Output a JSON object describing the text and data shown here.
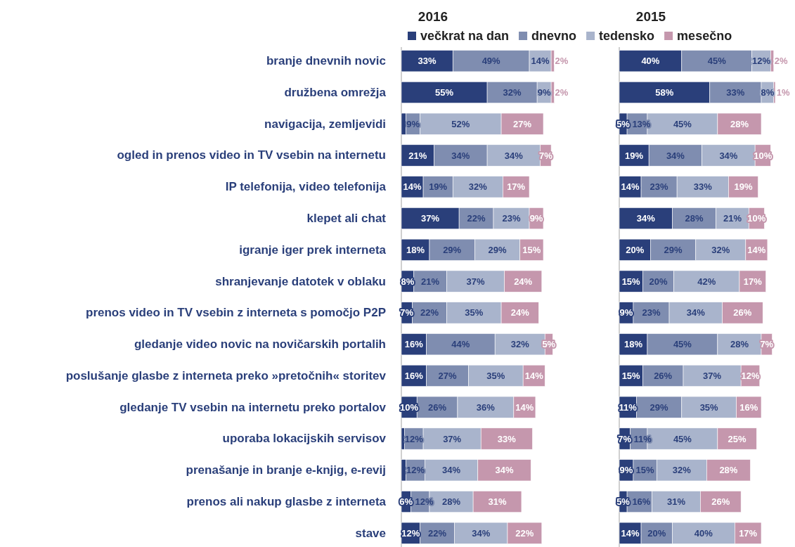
{
  "chart_data": [
    {
      "type": "bar",
      "orientation": "horizontal",
      "stacked": true,
      "title": "2016",
      "legend": "top",
      "categories": [
        "branje dnevnih novic",
        "družbena omrežja",
        "navigacija, zemljevidi",
        "ogled in prenos video in TV vsebin na internetu",
        "IP telefonija, video telefonija",
        "klepet ali chat",
        "igranje iger prek interneta",
        "shranjevanje datotek v oblaku",
        "prenos video in TV vsebin z interneta s pomočjo P2P",
        "gledanje video novic na novičarskih portalih",
        "poslušanje glasbe z interneta preko »pretočnih« storitev",
        "gledanje TV vsebin na internetu preko portalov",
        "uporaba lokacijskih servisov",
        "prenašanje in branje e-knjig, e-revij",
        "prenos ali nakup glasbe z interneta",
        "stave"
      ],
      "series": [
        {
          "name": "večkrat na dan",
          "color": "#2a3f7a",
          "values": [
            33,
            55,
            3,
            21,
            14,
            37,
            18,
            8,
            7,
            16,
            16,
            10,
            2,
            3,
            6,
            12
          ],
          "value_labels": [
            "33%",
            "55%",
            null,
            "21%",
            "14%",
            "37%",
            "18%",
            "8%",
            "7%",
            "16%",
            "16%",
            "10%",
            null,
            null,
            "6%",
            "12%"
          ]
        },
        {
          "name": "dnevno",
          "color": "#7f8db0",
          "values": [
            49,
            32,
            9,
            34,
            19,
            22,
            29,
            21,
            22,
            44,
            27,
            26,
            12,
            12,
            12,
            22
          ],
          "value_labels": [
            "49%",
            "32%",
            "9%",
            "34%",
            "19%",
            "22%",
            "29%",
            "21%",
            "22%",
            "44%",
            "27%",
            "26%",
            "12%",
            "12%",
            "12%",
            "22%"
          ]
        },
        {
          "name": "tedensko",
          "color": "#a9b4cc",
          "values": [
            14,
            9,
            52,
            34,
            32,
            23,
            29,
            37,
            35,
            32,
            35,
            36,
            37,
            34,
            28,
            34
          ],
          "value_labels": [
            "14%",
            "9%",
            "52%",
            "34%",
            "32%",
            "23%",
            "29%",
            "37%",
            "35%",
            "32%",
            "35%",
            "36%",
            "37%",
            "34%",
            "28%",
            "34%"
          ]
        },
        {
          "name": "mesečno",
          "color": "#c597ad",
          "values": [
            2,
            2,
            27,
            7,
            17,
            9,
            15,
            24,
            24,
            5,
            14,
            14,
            33,
            34,
            31,
            22
          ],
          "value_labels": [
            "2%",
            "2%",
            "27%",
            "7%",
            "17%",
            "9%",
            "15%",
            "24%",
            "24%",
            "5%",
            "14%",
            "14%",
            "33%",
            "34%",
            "31%",
            "22%"
          ]
        }
      ]
    },
    {
      "type": "bar",
      "orientation": "horizontal",
      "stacked": true,
      "title": "2015",
      "categories": [
        null,
        null,
        null,
        null,
        null,
        null,
        null,
        null,
        null,
        null,
        null,
        null,
        null,
        null,
        null,
        null
      ],
      "series": [
        {
          "color": "#2a3f7a",
          "values": [
            40,
            58,
            5,
            19,
            14,
            34,
            20,
            15,
            9,
            18,
            15,
            11,
            7,
            9,
            5,
            14
          ],
          "value_labels": [
            "40%",
            "58%",
            "5%",
            "19%",
            "14%",
            "34%",
            "20%",
            "15%",
            "9%",
            "18%",
            "15%",
            "11%",
            "7%",
            "9%",
            "5%",
            "14%"
          ]
        },
        {
          "color": "#7f8db0",
          "values": [
            45,
            33,
            13,
            34,
            23,
            28,
            29,
            20,
            23,
            45,
            26,
            29,
            11,
            15,
            16,
            20
          ],
          "value_labels": [
            "45%",
            "33%",
            "13%",
            "34%",
            "23%",
            "28%",
            "29%",
            "20%",
            "23%",
            "45%",
            "26%",
            "29%",
            "11%",
            "15%",
            "16%",
            "20%"
          ]
        },
        {
          "color": "#a9b4cc",
          "values": [
            12,
            8,
            45,
            34,
            33,
            21,
            32,
            42,
            34,
            28,
            37,
            35,
            45,
            32,
            31,
            40
          ],
          "value_labels": [
            "12%",
            "8%",
            "45%",
            "34%",
            "33%",
            "21%",
            "32%",
            "42%",
            "34%",
            "28%",
            "37%",
            "35%",
            "45%",
            "32%",
            "31%",
            "40%"
          ]
        },
        {
          "color": "#c597ad",
          "values": [
            2,
            1,
            28,
            10,
            19,
            10,
            14,
            17,
            26,
            7,
            12,
            16,
            25,
            28,
            26,
            17
          ],
          "value_labels": [
            "2%",
            "1%",
            "28%",
            "10%",
            "19%",
            "10%",
            "14%",
            "17%",
            "26%",
            "7%",
            "12%",
            "16%",
            "25%",
            "28%",
            "26%",
            "17%"
          ]
        }
      ]
    }
  ]
}
